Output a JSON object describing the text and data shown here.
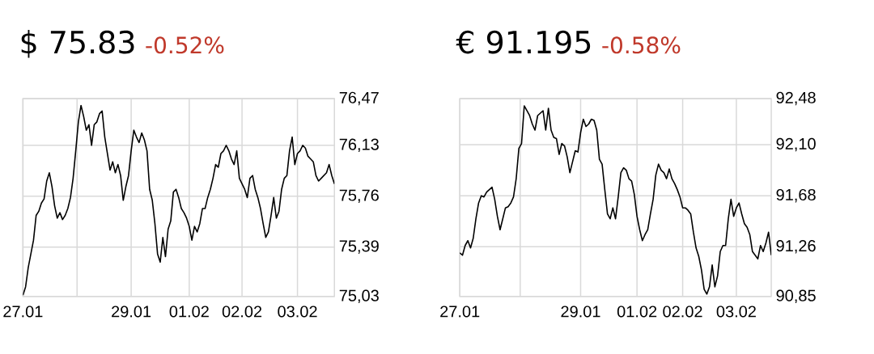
{
  "chart_data": [
    {
      "type": "line",
      "title": "$ 75.83",
      "subtitle": "-0.52%",
      "categories": [
        "27.01",
        null,
        null,
        null,
        null,
        null,
        null,
        null,
        null,
        null,
        null,
        null,
        null,
        null,
        null,
        null,
        null,
        null,
        null,
        null,
        null,
        null,
        null,
        null,
        null,
        null,
        null,
        null,
        null,
        null,
        null,
        null,
        null,
        null,
        null,
        null,
        null,
        null,
        null,
        null,
        null,
        "29.01",
        null,
        null,
        null,
        null,
        null,
        null,
        null,
        null,
        null,
        null,
        null,
        null,
        null,
        null,
        null,
        null,
        null,
        null,
        null,
        null,
        null,
        "01.02",
        null,
        null,
        null,
        null,
        null,
        null,
        null,
        null,
        null,
        null,
        null,
        null,
        null,
        null,
        null,
        null,
        null,
        null,
        null,
        "02.02",
        null,
        null,
        null,
        null,
        null,
        null,
        null,
        null,
        null,
        null,
        null,
        null,
        null,
        null,
        null,
        null,
        null,
        null,
        null,
        null,
        "03.02",
        null,
        null,
        null,
        null,
        null,
        null,
        null,
        null,
        null,
        null,
        null,
        null,
        null,
        null
      ],
      "series": [
        {
          "color": "#000000",
          "values": [
            75.04,
            75.1,
            75.24,
            75.34,
            75.44,
            75.62,
            75.65,
            75.71,
            75.74,
            75.87,
            75.93,
            75.83,
            75.69,
            75.6,
            75.64,
            75.59,
            75.62,
            75.67,
            75.75,
            75.89,
            76.09,
            76.3,
            76.42,
            76.34,
            76.24,
            76.28,
            76.13,
            76.28,
            76.3,
            76.36,
            76.38,
            76.19,
            76.07,
            75.95,
            76.01,
            75.93,
            75.99,
            75.91,
            75.73,
            75.83,
            75.91,
            76.09,
            76.24,
            76.19,
            76.15,
            76.22,
            76.17,
            76.09,
            75.81,
            75.73,
            75.56,
            75.34,
            75.28,
            75.46,
            75.32,
            75.52,
            75.58,
            75.79,
            75.81,
            75.75,
            75.67,
            75.64,
            75.6,
            75.54,
            75.44,
            75.54,
            75.5,
            75.56,
            75.67,
            75.67,
            75.75,
            75.81,
            75.89,
            75.99,
            75.97,
            76.07,
            76.09,
            76.13,
            76.09,
            76.03,
            75.99,
            76.09,
            75.89,
            75.85,
            75.81,
            75.75,
            75.89,
            75.91,
            75.81,
            75.75,
            75.67,
            75.56,
            75.46,
            75.5,
            75.62,
            75.75,
            75.6,
            75.65,
            75.81,
            75.89,
            75.91,
            76.09,
            76.19,
            75.99,
            76.07,
            76.09,
            76.13,
            76.11,
            76.05,
            76.03,
            76.01,
            75.91,
            75.87,
            75.89,
            75.91,
            75.93,
            75.99,
            75.91,
            75.85
          ]
        }
      ],
      "ylim": [
        75.03,
        76.47
      ],
      "yticks": [
        {
          "value": 75.03,
          "label": "75,03"
        },
        {
          "value": 75.39,
          "label": "75,39"
        },
        {
          "value": 75.76,
          "label": "75,76"
        },
        {
          "value": 76.13,
          "label": "76,13"
        },
        {
          "value": 76.47,
          "label": "76,47"
        }
      ],
      "grid": true
    },
    {
      "type": "line",
      "title": "€ 91.195",
      "subtitle": "-0.58%",
      "categories": [
        "27.01",
        null,
        null,
        null,
        null,
        null,
        null,
        null,
        null,
        null,
        null,
        null,
        null,
        null,
        null,
        null,
        null,
        null,
        null,
        null,
        null,
        null,
        null,
        null,
        null,
        null,
        null,
        null,
        null,
        null,
        null,
        null,
        null,
        null,
        null,
        null,
        null,
        null,
        null,
        null,
        null,
        null,
        null,
        null,
        null,
        "29.01",
        null,
        null,
        null,
        null,
        null,
        null,
        null,
        null,
        null,
        null,
        null,
        null,
        null,
        null,
        null,
        null,
        null,
        null,
        null,
        null,
        "01.02",
        null,
        null,
        null,
        null,
        null,
        null,
        null,
        null,
        null,
        null,
        null,
        null,
        null,
        null,
        null,
        null,
        "02.02",
        null,
        null,
        null,
        null,
        null,
        null,
        null,
        null,
        null,
        null,
        null,
        null,
        null,
        null,
        null,
        null,
        null,
        null,
        null,
        "03.02",
        null,
        null,
        null,
        null,
        null,
        null,
        null,
        null,
        null,
        null,
        null,
        null,
        null
      ],
      "series": [
        {
          "color": "#000000",
          "values": [
            91.21,
            91.19,
            91.27,
            91.31,
            91.25,
            91.33,
            91.49,
            91.62,
            91.68,
            91.67,
            91.71,
            91.73,
            91.75,
            91.65,
            91.51,
            91.4,
            91.49,
            91.58,
            91.59,
            91.62,
            91.67,
            91.82,
            92.07,
            92.11,
            92.42,
            92.38,
            92.34,
            92.27,
            92.22,
            92.34,
            92.36,
            92.38,
            92.22,
            92.4,
            92.22,
            92.16,
            92.15,
            92.02,
            92.11,
            92.09,
            92.0,
            91.87,
            91.96,
            92.05,
            92.04,
            92.2,
            92.31,
            92.25,
            92.27,
            92.31,
            92.3,
            92.22,
            91.98,
            91.94,
            91.73,
            91.53,
            91.49,
            91.58,
            91.49,
            91.67,
            91.87,
            91.91,
            91.89,
            91.82,
            91.8,
            91.69,
            91.51,
            91.4,
            91.31,
            91.36,
            91.4,
            91.53,
            91.65,
            91.85,
            91.94,
            91.89,
            91.87,
            91.82,
            91.9,
            91.82,
            91.78,
            91.73,
            91.67,
            91.58,
            91.58,
            91.56,
            91.53,
            91.38,
            91.25,
            91.18,
            91.07,
            90.91,
            90.87,
            90.93,
            91.11,
            90.93,
            91.02,
            91.22,
            91.27,
            91.27,
            91.49,
            91.65,
            91.51,
            91.58,
            91.62,
            91.53,
            91.45,
            91.42,
            91.36,
            91.22,
            91.19,
            91.16,
            91.27,
            91.22,
            91.29,
            91.38,
            91.19
          ]
        }
      ],
      "ylim": [
        90.85,
        92.48
      ],
      "yticks": [
        {
          "value": 90.85,
          "label": "90,85"
        },
        {
          "value": 91.26,
          "label": "91,26"
        },
        {
          "value": 91.68,
          "label": "91,68"
        },
        {
          "value": 92.1,
          "label": "92,10"
        },
        {
          "value": 92.48,
          "label": "92,48"
        }
      ],
      "grid": true
    }
  ]
}
